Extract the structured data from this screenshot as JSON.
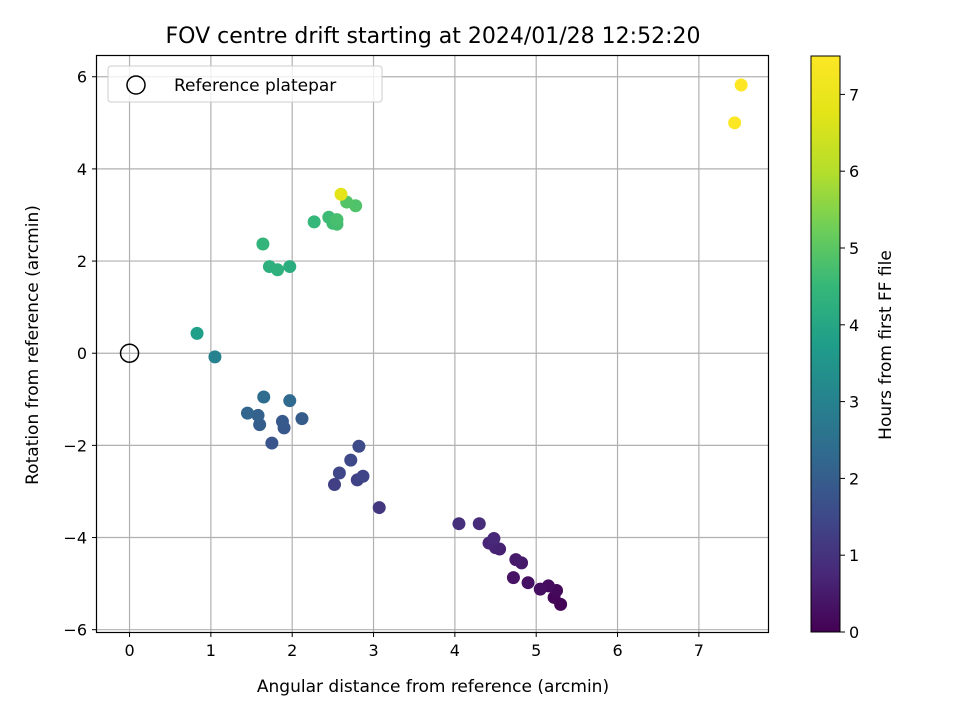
{
  "chart_data": {
    "type": "scatter",
    "title": "FOV centre drift starting at 2024/01/28 12:52:20",
    "xlabel": "Angular distance from reference (arcmin)",
    "ylabel": "Rotation from reference (arcmin)",
    "xlim": [
      -0.4,
      7.85
    ],
    "ylim": [
      -6.05,
      6.45
    ],
    "xticks": [
      0,
      1,
      2,
      3,
      4,
      5,
      6,
      7
    ],
    "yticks": [
      -6,
      -4,
      -2,
      0,
      2,
      4,
      6
    ],
    "xtick_labels": [
      "0",
      "1",
      "2",
      "3",
      "4",
      "5",
      "6",
      "7"
    ],
    "ytick_labels": [
      "−6",
      "−4",
      "−2",
      "0",
      "2",
      "4",
      "6"
    ],
    "grid": true,
    "legend": {
      "position": "top-left",
      "entries": [
        {
          "label": "Reference platepar",
          "marker": "open-circle",
          "x": 0,
          "y": 0
        }
      ]
    },
    "colorbar": {
      "label": "Hours from first FF file",
      "colormap": "viridis",
      "range": [
        0,
        7.5
      ],
      "ticks": [
        0,
        1,
        2,
        3,
        4,
        5,
        6,
        7
      ],
      "tick_labels": [
        "0",
        "1",
        "2",
        "3",
        "4",
        "5",
        "6",
        "7"
      ]
    },
    "points": [
      {
        "x": 5.3,
        "y": -5.45,
        "hours": 0.05
      },
      {
        "x": 5.22,
        "y": -5.3,
        "hours": 0.1
      },
      {
        "x": 5.25,
        "y": -5.15,
        "hours": 0.15
      },
      {
        "x": 5.15,
        "y": -5.05,
        "hours": 0.2
      },
      {
        "x": 5.05,
        "y": -5.12,
        "hours": 0.25
      },
      {
        "x": 4.9,
        "y": -4.98,
        "hours": 0.3
      },
      {
        "x": 4.72,
        "y": -4.87,
        "hours": 0.35
      },
      {
        "x": 4.82,
        "y": -4.55,
        "hours": 0.45
      },
      {
        "x": 4.75,
        "y": -4.48,
        "hours": 0.5
      },
      {
        "x": 4.55,
        "y": -4.25,
        "hours": 0.6
      },
      {
        "x": 4.5,
        "y": -4.22,
        "hours": 0.65
      },
      {
        "x": 4.42,
        "y": -4.12,
        "hours": 0.7
      },
      {
        "x": 4.48,
        "y": -4.02,
        "hours": 0.75
      },
      {
        "x": 4.3,
        "y": -3.7,
        "hours": 0.85
      },
      {
        "x": 4.05,
        "y": -3.7,
        "hours": 0.9
      },
      {
        "x": 3.07,
        "y": -3.35,
        "hours": 1.1
      },
      {
        "x": 2.52,
        "y": -2.85,
        "hours": 1.3
      },
      {
        "x": 2.8,
        "y": -2.75,
        "hours": 1.35
      },
      {
        "x": 2.87,
        "y": -2.67,
        "hours": 1.4
      },
      {
        "x": 2.58,
        "y": -2.6,
        "hours": 1.45
      },
      {
        "x": 2.72,
        "y": -2.32,
        "hours": 1.5
      },
      {
        "x": 2.82,
        "y": -2.02,
        "hours": 1.55
      },
      {
        "x": 1.75,
        "y": -1.95,
        "hours": 1.8
      },
      {
        "x": 1.9,
        "y": -1.62,
        "hours": 1.85
      },
      {
        "x": 1.88,
        "y": -1.48,
        "hours": 1.9
      },
      {
        "x": 2.12,
        "y": -1.42,
        "hours": 1.95
      },
      {
        "x": 1.6,
        "y": -1.55,
        "hours": 2.0
      },
      {
        "x": 1.58,
        "y": -1.35,
        "hours": 2.1
      },
      {
        "x": 1.45,
        "y": -1.3,
        "hours": 2.2
      },
      {
        "x": 1.97,
        "y": -1.03,
        "hours": 2.3
      },
      {
        "x": 1.65,
        "y": -0.95,
        "hours": 2.4
      },
      {
        "x": 1.05,
        "y": -0.08,
        "hours": 3.0
      },
      {
        "x": 0.83,
        "y": 0.43,
        "hours": 3.8
      },
      {
        "x": 1.97,
        "y": 1.88,
        "hours": 4.2
      },
      {
        "x": 1.72,
        "y": 1.88,
        "hours": 4.25
      },
      {
        "x": 1.82,
        "y": 1.81,
        "hours": 4.3
      },
      {
        "x": 1.64,
        "y": 2.37,
        "hours": 4.4
      },
      {
        "x": 2.27,
        "y": 2.85,
        "hours": 4.5
      },
      {
        "x": 2.45,
        "y": 2.95,
        "hours": 4.6
      },
      {
        "x": 2.5,
        "y": 2.82,
        "hours": 4.65
      },
      {
        "x": 2.55,
        "y": 2.8,
        "hours": 4.7
      },
      {
        "x": 2.55,
        "y": 2.9,
        "hours": 4.75
      },
      {
        "x": 2.78,
        "y": 3.2,
        "hours": 4.85
      },
      {
        "x": 2.67,
        "y": 3.28,
        "hours": 4.9
      },
      {
        "x": 2.6,
        "y": 3.45,
        "hours": 6.8
      },
      {
        "x": 7.44,
        "y": 5.0,
        "hours": 7.45
      },
      {
        "x": 7.52,
        "y": 5.82,
        "hours": 7.5
      }
    ]
  }
}
